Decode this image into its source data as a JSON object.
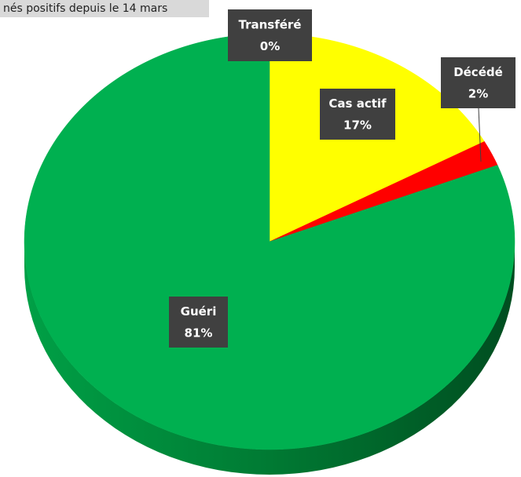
{
  "chart_data": {
    "type": "pie",
    "title": "nés positifs depuis le 14 mars",
    "categories": [
      "Transféré",
      "Cas actif",
      "Décédé",
      "Guéri"
    ],
    "values": [
      0,
      17,
      2,
      81
    ],
    "value_labels": [
      "0%",
      "17%",
      "2%",
      "81%"
    ],
    "colors": [
      "#4472c4",
      "#ffff00",
      "#ff0000",
      "#00b050"
    ]
  }
}
